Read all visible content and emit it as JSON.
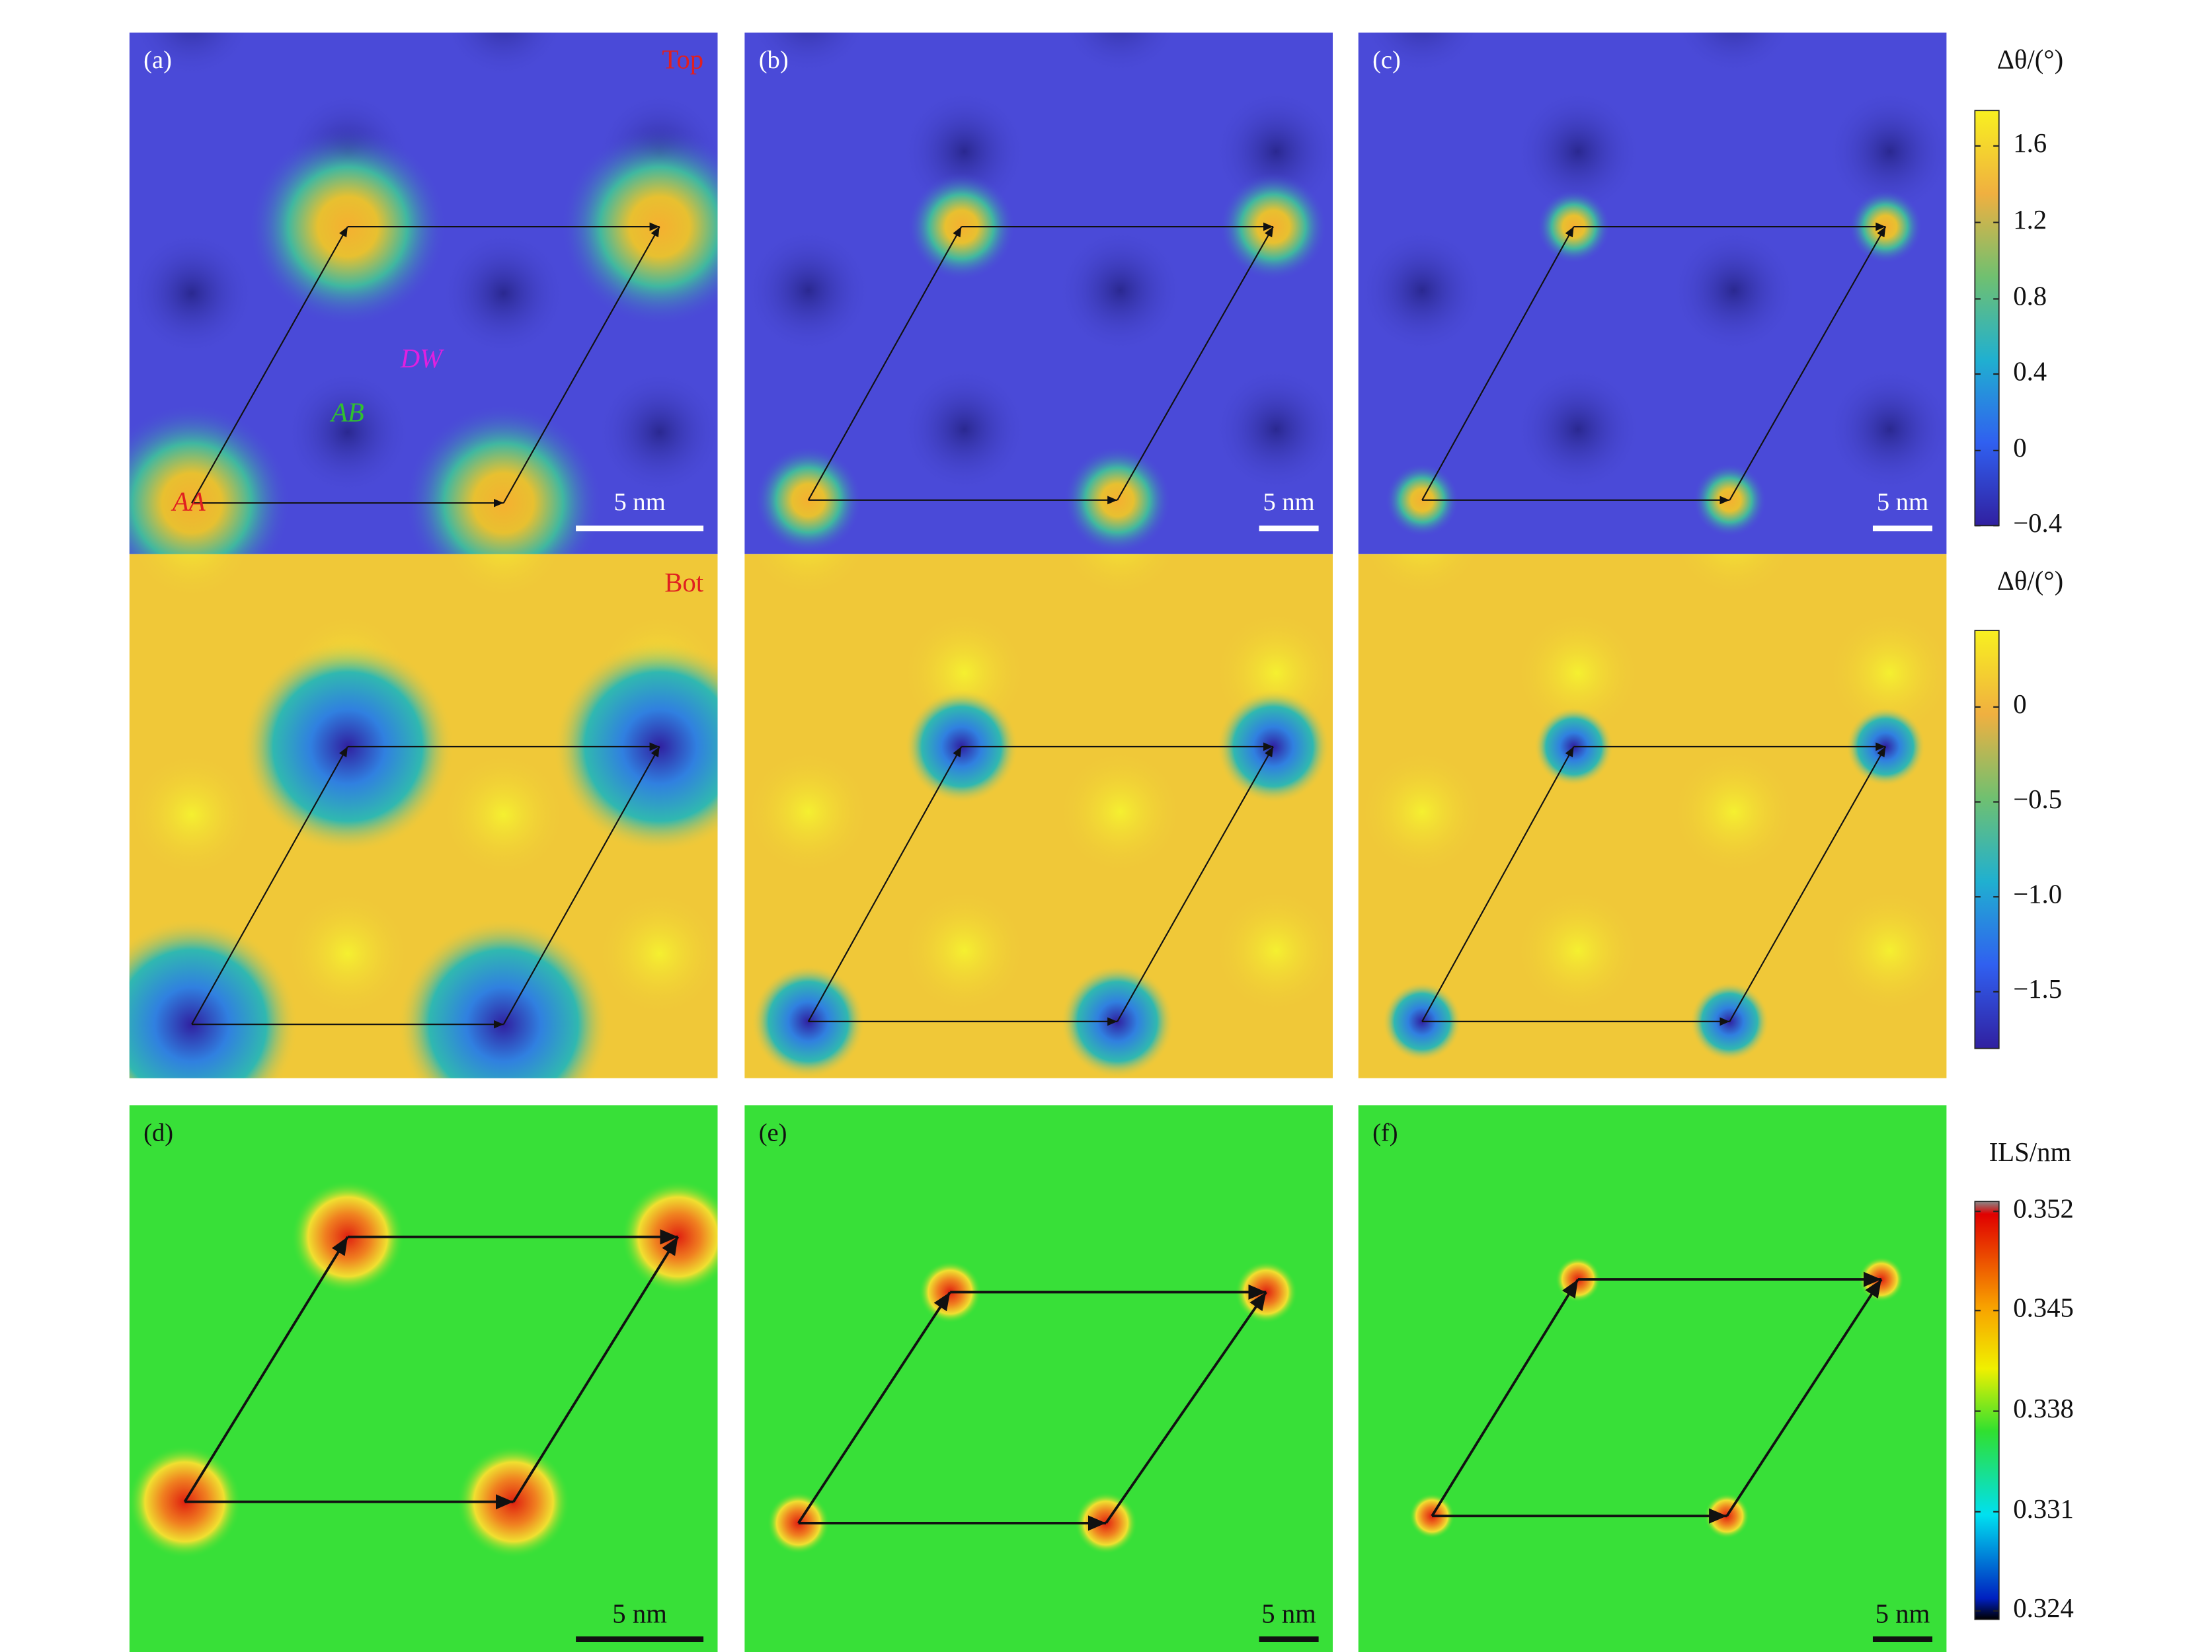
{
  "twist_rows": [
    {
      "label": "(a)",
      "tag": "Top",
      "scale_bar": "5 nm",
      "annotations": [
        "DW",
        "AB",
        "AA"
      ]
    },
    {
      "label": "(b)",
      "scale_bar": "5 nm"
    },
    {
      "label": "(c)",
      "scale_bar": "5 nm"
    }
  ],
  "bottom_layer_tag": "Bot",
  "ils_row": [
    {
      "label": "(d)",
      "scale_bar": "5 nm"
    },
    {
      "label": "(e)",
      "scale_bar": "5 nm"
    },
    {
      "label": "(f)",
      "scale_bar": "5 nm"
    }
  ],
  "colorbars": [
    {
      "title": "Δθ/(°)",
      "ticks": [
        "1.6",
        "1.2",
        "0.8",
        "0.4",
        "0",
        "−0.4"
      ]
    },
    {
      "title": "Δθ/(°)",
      "ticks": [
        "0",
        "−0.5",
        "−1.0",
        "−1.5"
      ]
    },
    {
      "title": "ILS/nm",
      "ticks": [
        "0.352",
        "0.345",
        "0.338",
        "0.331",
        "0.324"
      ]
    }
  ]
}
